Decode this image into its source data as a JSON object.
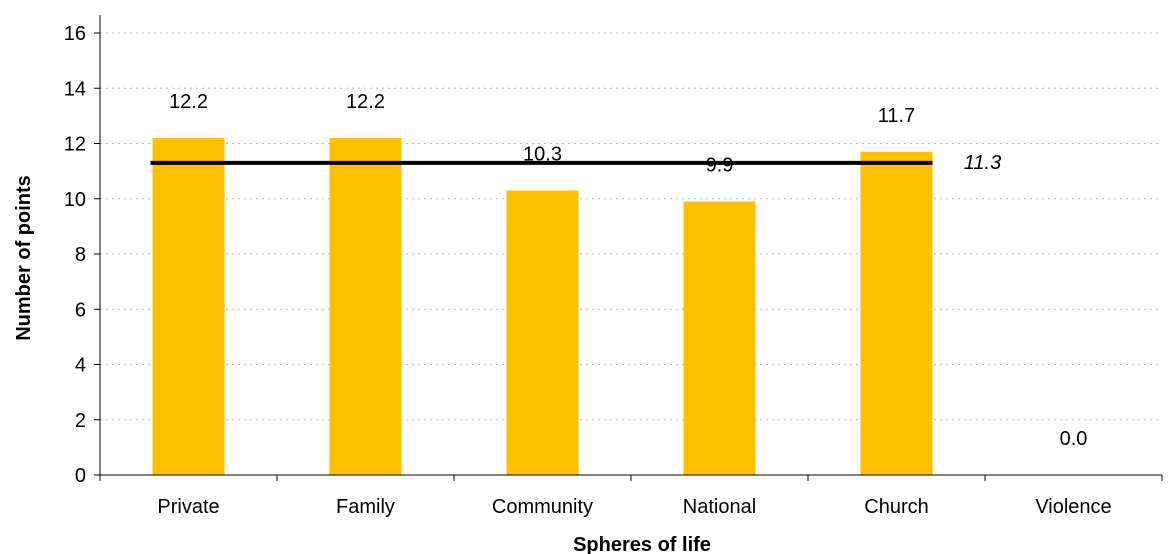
{
  "chart_data": {
    "type": "bar",
    "categories": [
      "Private",
      "Family",
      "Community",
      "National",
      "Church",
      "Violence"
    ],
    "values": [
      12.2,
      12.2,
      10.3,
      9.9,
      11.7,
      0.0
    ],
    "value_labels": [
      "12.2",
      "12.2",
      "10.3",
      "9.9",
      "11.7",
      "0.0"
    ],
    "xlabel": "Spheres of life",
    "ylabel": "Number of points",
    "ylim": [
      0,
      16
    ],
    "yticks": [
      0,
      2,
      4,
      6,
      8,
      10,
      12,
      14,
      16
    ],
    "grid": true,
    "bar_color": "#FFC000",
    "average_line": {
      "value": 11.3,
      "label": "11.3",
      "from_category": "Private",
      "to_category": "Church",
      "color": "#000000"
    }
  }
}
